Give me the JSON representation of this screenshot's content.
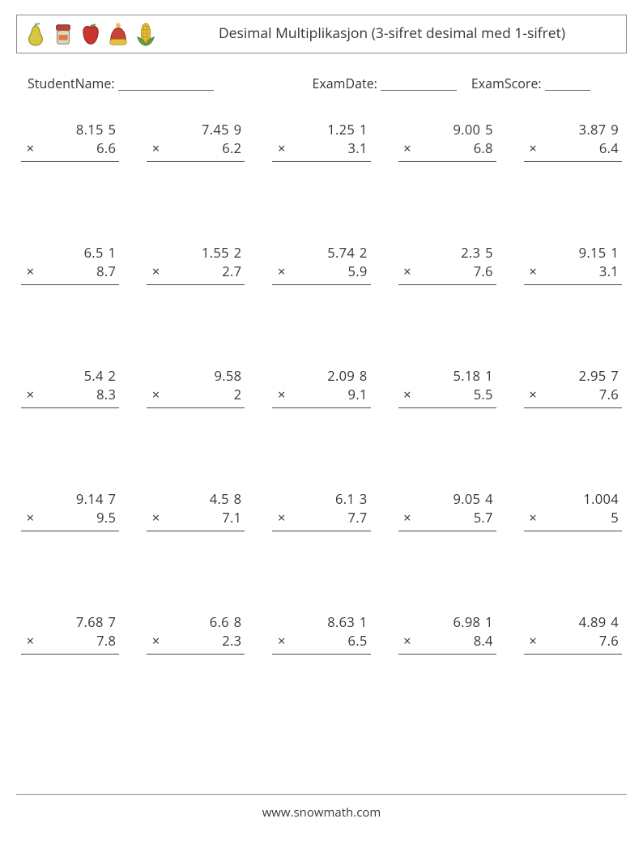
{
  "header": {
    "title": "Desimal Multiplikasjon (3-sifret desimal med 1-sifret)"
  },
  "labels": {
    "student": "StudentName:",
    "date": "ExamDate:",
    "score": "ExamScore:"
  },
  "blank_widths": {
    "student": "118px",
    "date": "94px",
    "score": "56px"
  },
  "problems": [
    {
      "a_int": "8.15",
      "a_frac": "5",
      "b": "6.6"
    },
    {
      "a_int": "7.45",
      "a_frac": "9",
      "b": "6.2"
    },
    {
      "a_int": "1.25",
      "a_frac": "1",
      "b": "3.1"
    },
    {
      "a_int": "9.00",
      "a_frac": "5",
      "b": "6.8"
    },
    {
      "a_int": "3.87",
      "a_frac": "9",
      "b": "6.4"
    },
    {
      "a_int": "6.5",
      "a_frac": "1",
      "b": "8.7"
    },
    {
      "a_int": "1.55",
      "a_frac": "2",
      "b": "2.7"
    },
    {
      "a_int": "5.74",
      "a_frac": "2",
      "b": "5.9"
    },
    {
      "a_int": "2.3",
      "a_frac": "5",
      "b": "7.6"
    },
    {
      "a_int": "9.15",
      "a_frac": "1",
      "b": "3.1"
    },
    {
      "a_int": "5.4",
      "a_frac": "2",
      "b": "8.3"
    },
    {
      "a_int": "9.58",
      "a_frac": "",
      "b": "2"
    },
    {
      "a_int": "2.09",
      "a_frac": "8",
      "b": "9.1"
    },
    {
      "a_int": "5.18",
      "a_frac": "1",
      "b": "5.5"
    },
    {
      "a_int": "2.95",
      "a_frac": "7",
      "b": "7.6"
    },
    {
      "a_int": "9.14",
      "a_frac": "7",
      "b": "9.5"
    },
    {
      "a_int": "4.5",
      "a_frac": "8",
      "b": "7.1"
    },
    {
      "a_int": "6.1",
      "a_frac": "3",
      "b": "7.7"
    },
    {
      "a_int": "9.05",
      "a_frac": "4",
      "b": "5.7"
    },
    {
      "a_int": "1.004",
      "a_frac": "",
      "b": "5"
    },
    {
      "a_int": "7.68",
      "a_frac": "7",
      "b": "7.8"
    },
    {
      "a_int": "6.6",
      "a_frac": "8",
      "b": "2.3"
    },
    {
      "a_int": "8.63",
      "a_frac": "1",
      "b": "6.5"
    },
    {
      "a_int": "6.98",
      "a_frac": "1",
      "b": "8.4"
    },
    {
      "a_int": "4.89",
      "a_frac": "4",
      "b": "7.6"
    }
  ],
  "footer": "www.snowmath.com",
  "colors": {
    "pear_body": "#d6c740",
    "pear_stroke": "#9a8b20",
    "pear_leaf": "#6aa037",
    "jar_lid": "#b44436",
    "jar_body": "#dcd6c5",
    "jar_label": "#e07a3c",
    "apple_body": "#c8362e",
    "apple_leaf": "#5f9c3b",
    "apple_stem": "#72502e",
    "hat_body": "#c84434",
    "hat_band": "#e7c23b",
    "hat_pom": "#e7c23b",
    "corn_kernel": "#e7c23b",
    "corn_leaf": "#6aa037"
  }
}
